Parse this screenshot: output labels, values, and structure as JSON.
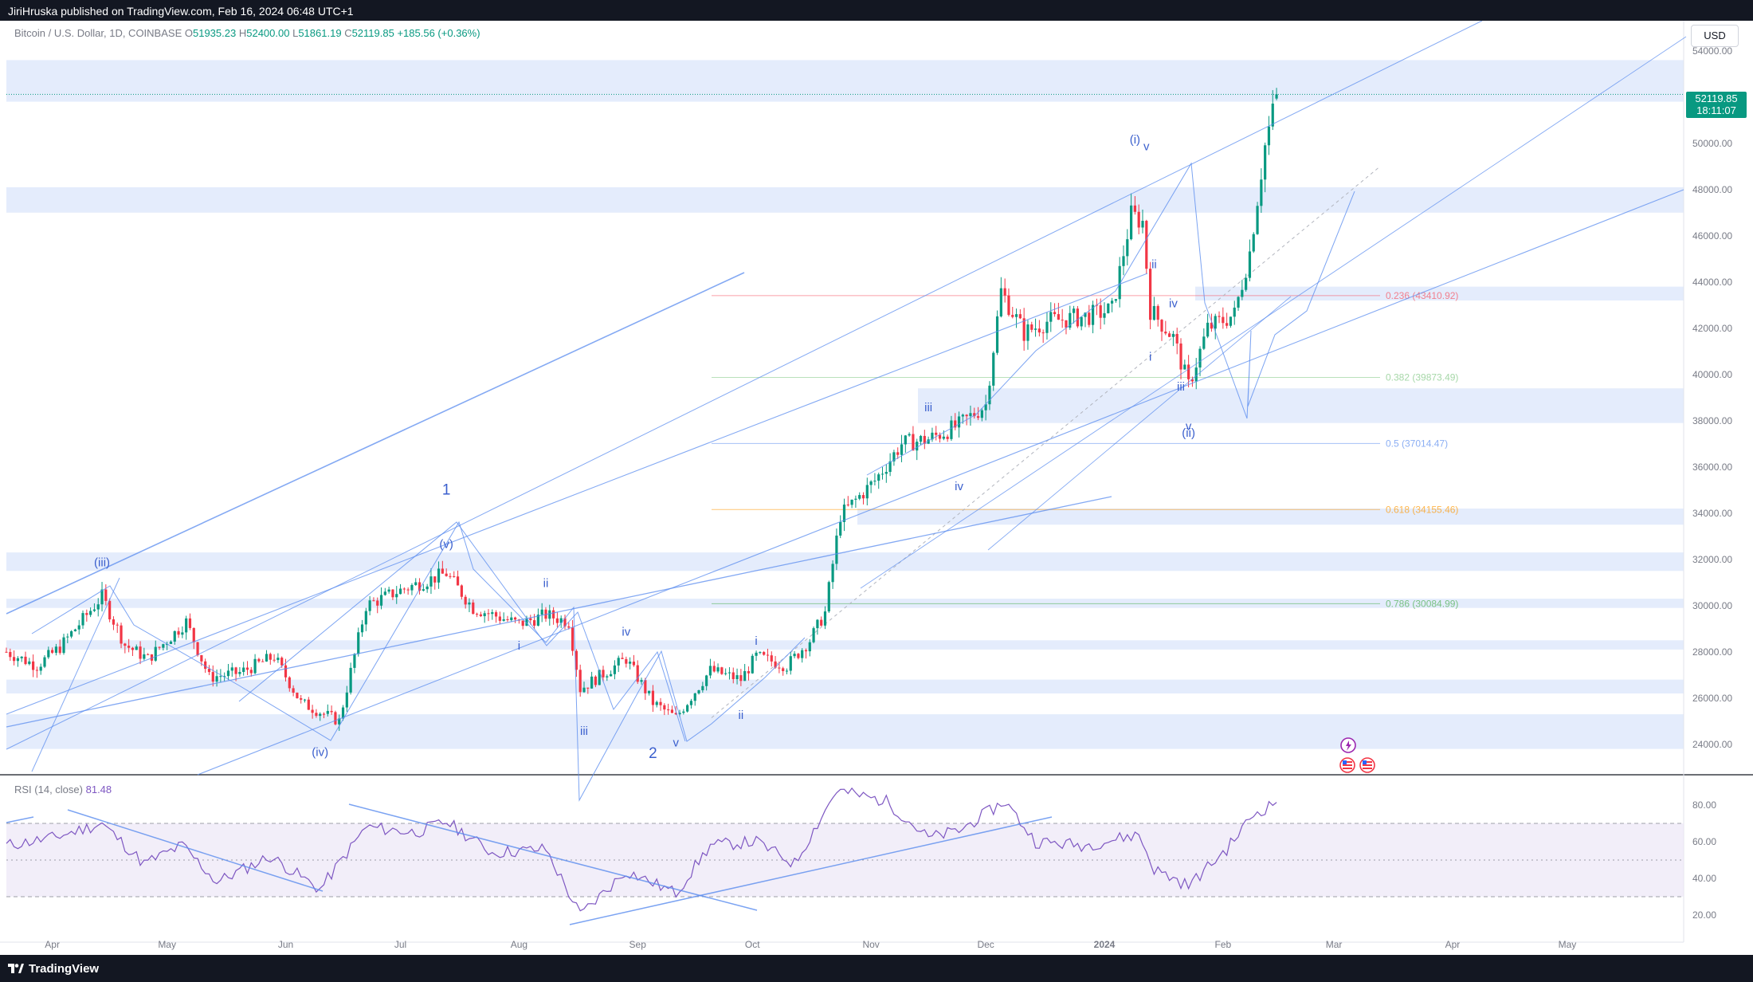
{
  "header": {
    "publisher_text": "JiriHruska published on TradingView.com, Feb 16, 2024 06:48 UTC+1"
  },
  "footer": {
    "brand": "TradingView"
  },
  "legend": {
    "symbol": "Bitcoin / U.S. Dollar, 1D, COINBASE",
    "open_label": "O",
    "open": "51935.23",
    "high_label": "H",
    "high": "52400.00",
    "low_label": "L",
    "low": "51861.19",
    "close_label": "C",
    "close": "52119.85",
    "change": "+185.56 (+0.36%)"
  },
  "currency_button": "USD",
  "last_price": {
    "price": "52119.85",
    "countdown": "18:11:07"
  },
  "rsi": {
    "label": "RSI (14, close)",
    "value": "81.48"
  },
  "colors": {
    "up": "#089981",
    "down": "#f23645",
    "drawing": "#5b8def",
    "zone": "#dbe6fb",
    "rsi_line": "#7e57c2",
    "rsi_band": "#ede7f6"
  },
  "icons": [
    "lightning-icon",
    "us-flag-icon"
  ],
  "chart_data": [
    {
      "type": "candlestick",
      "title": "Bitcoin / U.S. Dollar, 1D, COINBASE",
      "x_tick_labels": [
        "Apr",
        "May",
        "Jun",
        "Jul",
        "Aug",
        "Sep",
        "Oct",
        "Nov",
        "Dec",
        "2024",
        "Feb",
        "Mar",
        "Apr",
        "May"
      ],
      "ylim": [
        22800,
        55200
      ],
      "y_tick_labels": [
        "24000.00",
        "26000.00",
        "28000.00",
        "30000.00",
        "32000.00",
        "34000.00",
        "36000.00",
        "38000.00",
        "40000.00",
        "42000.00",
        "44000.00",
        "46000.00",
        "48000.00",
        "50000.00",
        "54000.00"
      ],
      "price_path": [
        {
          "date": "2023-03-20",
          "price": 28000
        },
        {
          "date": "2023-03-28",
          "price": 27400
        },
        {
          "date": "2023-04-03",
          "price": 28200
        },
        {
          "date": "2023-04-14",
          "price": 30400
        },
        {
          "date": "2023-04-20",
          "price": 28300
        },
        {
          "date": "2023-04-26",
          "price": 27700
        },
        {
          "date": "2023-05-06",
          "price": 29300
        },
        {
          "date": "2023-05-12",
          "price": 26900
        },
        {
          "date": "2023-05-20",
          "price": 27100
        },
        {
          "date": "2023-05-29",
          "price": 27800
        },
        {
          "date": "2023-06-05",
          "price": 25800
        },
        {
          "date": "2023-06-15",
          "price": 25000
        },
        {
          "date": "2023-06-22",
          "price": 30000
        },
        {
          "date": "2023-06-30",
          "price": 30600
        },
        {
          "date": "2023-07-13",
          "price": 31400
        },
        {
          "date": "2023-07-20",
          "price": 29900
        },
        {
          "date": "2023-08-01",
          "price": 29200
        },
        {
          "date": "2023-08-08",
          "price": 29600
        },
        {
          "date": "2023-08-14",
          "price": 29300
        },
        {
          "date": "2023-08-17",
          "price": 26400
        },
        {
          "date": "2023-08-29",
          "price": 27700
        },
        {
          "date": "2023-09-05",
          "price": 25800
        },
        {
          "date": "2023-09-11",
          "price": 25150
        },
        {
          "date": "2023-09-20",
          "price": 27200
        },
        {
          "date": "2023-09-28",
          "price": 26800
        },
        {
          "date": "2023-10-02",
          "price": 27800
        },
        {
          "date": "2023-10-10",
          "price": 27400
        },
        {
          "date": "2023-10-16",
          "price": 28500
        },
        {
          "date": "2023-10-20",
          "price": 29700
        },
        {
          "date": "2023-10-24",
          "price": 33900
        },
        {
          "date": "2023-11-02",
          "price": 35400
        },
        {
          "date": "2023-11-09",
          "price": 37000
        },
        {
          "date": "2023-11-16",
          "price": 37200
        },
        {
          "date": "2023-11-24",
          "price": 37800
        },
        {
          "date": "2023-12-01",
          "price": 38700
        },
        {
          "date": "2023-12-05",
          "price": 43600
        },
        {
          "date": "2023-12-11",
          "price": 41800
        },
        {
          "date": "2023-12-17",
          "price": 42300
        },
        {
          "date": "2023-12-27",
          "price": 42500
        },
        {
          "date": "2024-01-03",
          "price": 42800
        },
        {
          "date": "2024-01-08",
          "price": 46900
        },
        {
          "date": "2024-01-11",
          "price": 46600
        },
        {
          "date": "2024-01-13",
          "price": 42800
        },
        {
          "date": "2024-01-19",
          "price": 41600
        },
        {
          "date": "2024-01-23",
          "price": 39500
        },
        {
          "date": "2024-01-28",
          "price": 42000
        },
        {
          "date": "2024-02-04",
          "price": 42600
        },
        {
          "date": "2024-02-08",
          "price": 45300
        },
        {
          "date": "2024-02-12",
          "price": 49900
        },
        {
          "date": "2024-02-15",
          "price": 52100
        }
      ],
      "last_bar": {
        "date": "2024-02-15",
        "open": 51935.23,
        "high": 52400.0,
        "low": 51861.19,
        "close": 52119.85
      },
      "fibonacci_levels": [
        {
          "label": "0.236 (43410.92)",
          "price": 43410.92,
          "color": "#f7525f"
        },
        {
          "label": "0.382 (39873.49)",
          "price": 39873.49,
          "color": "#81c784"
        },
        {
          "label": "0.5 (37014.47)",
          "price": 37014.47,
          "color": "#5b8def"
        },
        {
          "label": "0.618 (34155.46)",
          "price": 34155.46,
          "color": "#ff9800"
        },
        {
          "label": "0.786 (30084.99)",
          "price": 30084.99,
          "color": "#4caf50"
        }
      ],
      "zones": [
        {
          "from": 51800,
          "to": 53600
        },
        {
          "from": 47000,
          "to": 48100
        },
        {
          "from": 43200,
          "to": 43800
        },
        {
          "from": 37900,
          "to": 39400
        },
        {
          "from": 33500,
          "to": 34200
        },
        {
          "from": 31500,
          "to": 32300
        },
        {
          "from": 29900,
          "to": 30300
        },
        {
          "from": 28100,
          "to": 28500
        },
        {
          "from": 26200,
          "to": 26800
        },
        {
          "from": 23800,
          "to": 25300
        }
      ],
      "wave_labels": [
        {
          "text": "(iii)",
          "date": "2023-04-14",
          "price": 31700
        },
        {
          "text": "(iv)",
          "date": "2023-06-10",
          "price": 23500
        },
        {
          "text": "(v)",
          "date": "2023-07-13",
          "price": 32500
        },
        {
          "text": "1",
          "date": "2023-07-13",
          "price": 34800
        },
        {
          "text": "ii",
          "date": "2023-08-08",
          "price": 30800
        },
        {
          "text": "i",
          "date": "2023-08-01",
          "price": 28100
        },
        {
          "text": "iii",
          "date": "2023-08-18",
          "price": 24400
        },
        {
          "text": "iv",
          "date": "2023-08-29",
          "price": 28700
        },
        {
          "text": "v",
          "date": "2023-09-11",
          "price": 23900
        },
        {
          "text": "2",
          "date": "2023-09-05",
          "price": 23400
        },
        {
          "text": "i",
          "date": "2023-10-02",
          "price": 28300
        },
        {
          "text": "ii",
          "date": "2023-09-28",
          "price": 25100
        },
        {
          "text": "iii",
          "date": "2023-11-16",
          "price": 38400
        },
        {
          "text": "iv",
          "date": "2023-11-24",
          "price": 35000
        },
        {
          "text": "(i)",
          "date": "2024-01-09",
          "price": 50000
        },
        {
          "text": "v",
          "date": "2024-01-12",
          "price": 49700
        },
        {
          "text": "ii",
          "date": "2024-01-14",
          "price": 44600
        },
        {
          "text": "iv",
          "date": "2024-01-19",
          "price": 42900
        },
        {
          "text": "i",
          "date": "2024-01-13",
          "price": 40600
        },
        {
          "text": "iii",
          "date": "2024-01-21",
          "price": 39300
        },
        {
          "text": "v",
          "date": "2024-01-23",
          "price": 37600
        },
        {
          "text": "(ii)",
          "date": "2024-01-23",
          "price": 37300
        }
      ]
    },
    {
      "type": "line",
      "title": "RSI (14, close)",
      "ylim": [
        12,
        92
      ],
      "y_tick_labels": [
        "20.00",
        "40.00",
        "60.00",
        "80.00"
      ],
      "bands": {
        "upper": 70,
        "middle": 50,
        "lower": 30
      },
      "points": [
        {
          "date": "2023-03-20",
          "value": 58
        },
        {
          "date": "2023-04-01",
          "value": 62
        },
        {
          "date": "2023-04-14",
          "value": 70
        },
        {
          "date": "2023-04-25",
          "value": 48
        },
        {
          "date": "2023-05-05",
          "value": 58
        },
        {
          "date": "2023-05-14",
          "value": 38
        },
        {
          "date": "2023-05-28",
          "value": 52
        },
        {
          "date": "2023-06-10",
          "value": 34
        },
        {
          "date": "2023-06-22",
          "value": 68
        },
        {
          "date": "2023-07-05",
          "value": 65
        },
        {
          "date": "2023-07-13",
          "value": 71
        },
        {
          "date": "2023-07-25",
          "value": 54
        },
        {
          "date": "2023-08-08",
          "value": 56
        },
        {
          "date": "2023-08-17",
          "value": 20
        },
        {
          "date": "2023-08-29",
          "value": 44
        },
        {
          "date": "2023-09-11",
          "value": 32
        },
        {
          "date": "2023-09-20",
          "value": 58
        },
        {
          "date": "2023-10-02",
          "value": 60
        },
        {
          "date": "2023-10-12",
          "value": 48
        },
        {
          "date": "2023-10-23",
          "value": 88
        },
        {
          "date": "2023-11-05",
          "value": 82
        },
        {
          "date": "2023-11-16",
          "value": 62
        },
        {
          "date": "2023-11-24",
          "value": 66
        },
        {
          "date": "2023-12-06",
          "value": 82
        },
        {
          "date": "2023-12-14",
          "value": 60
        },
        {
          "date": "2023-12-27",
          "value": 58
        },
        {
          "date": "2024-01-10",
          "value": 64
        },
        {
          "date": "2024-01-14",
          "value": 45
        },
        {
          "date": "2024-01-23",
          "value": 36
        },
        {
          "date": "2024-02-02",
          "value": 56
        },
        {
          "date": "2024-02-09",
          "value": 75
        },
        {
          "date": "2024-02-15",
          "value": 81.48
        }
      ]
    }
  ]
}
